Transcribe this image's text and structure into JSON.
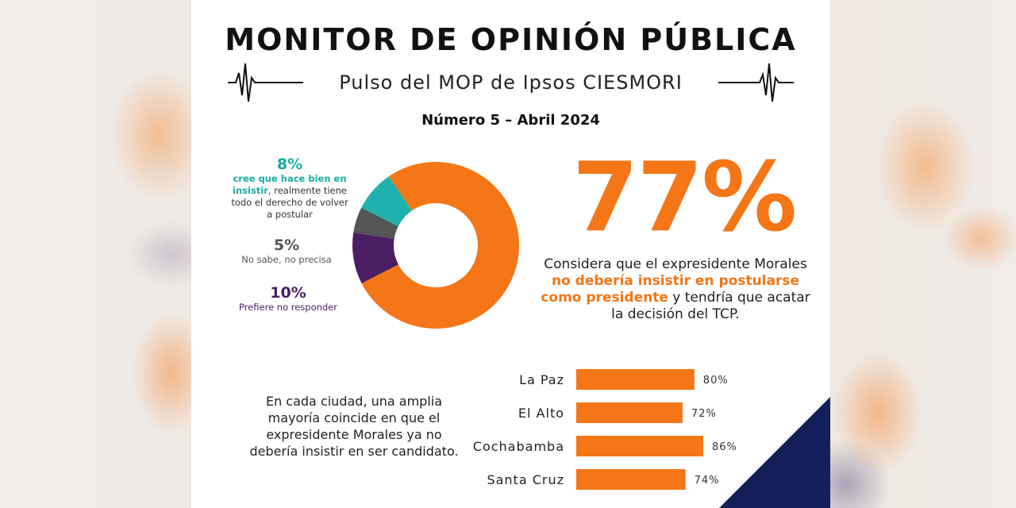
{
  "header": {
    "title": "MONITOR DE OPINIÓN PÚBLICA",
    "subtitle": "Pulso del MOP de Ipsos CIESMORI",
    "issue": "Número 5 – Abril 2024"
  },
  "legend": {
    "yes": {
      "pct": "8%",
      "line1": "cree que hace bien en",
      "line2_bold": "insistir",
      "line2_rest": ", realmente tiene",
      "line3": "todo el derecho de volver",
      "line4": "a postular"
    },
    "dk": {
      "pct": "5%",
      "text": "No sabe, no precisa"
    },
    "nr": {
      "pct": "10%",
      "text": "Prefiere no responder"
    }
  },
  "headline": {
    "pct": "77%",
    "pre": "Considera que el expresidente Morales",
    "highlight1": "no debería insistir en postularse",
    "highlight2": "como presidente",
    "post": " y tendría que acatar",
    "end": "la decisión del TCP."
  },
  "city_text": "En cada ciudad, una amplia mayoría coincide en que el expresidente Morales ya no debería insistir en ser candidato.",
  "colors": {
    "orange": "#f47617",
    "teal": "#1fb1ad",
    "gray": "#555555",
    "purple": "#4b1e63",
    "navy": "#14205a"
  },
  "chart_data": [
    {
      "type": "pie",
      "style": "donut",
      "slices": [
        {
          "label": "no debería insistir",
          "value": 77,
          "color": "#f47617"
        },
        {
          "label": "Prefiere no responder",
          "value": 10,
          "color": "#4b1e63"
        },
        {
          "label": "No sabe, no precisa",
          "value": 5,
          "color": "#555555"
        },
        {
          "label": "cree que hace bien en insistir",
          "value": 8,
          "color": "#1fb1ad"
        }
      ]
    },
    {
      "type": "bar",
      "orientation": "horizontal",
      "categories": [
        "La Paz",
        "El Alto",
        "Cochabamba",
        "Santa Cruz"
      ],
      "values": [
        80,
        72,
        86,
        74
      ],
      "value_labels": [
        "80%",
        "72%",
        "86%",
        "74%"
      ],
      "color": "#f47617"
    }
  ]
}
